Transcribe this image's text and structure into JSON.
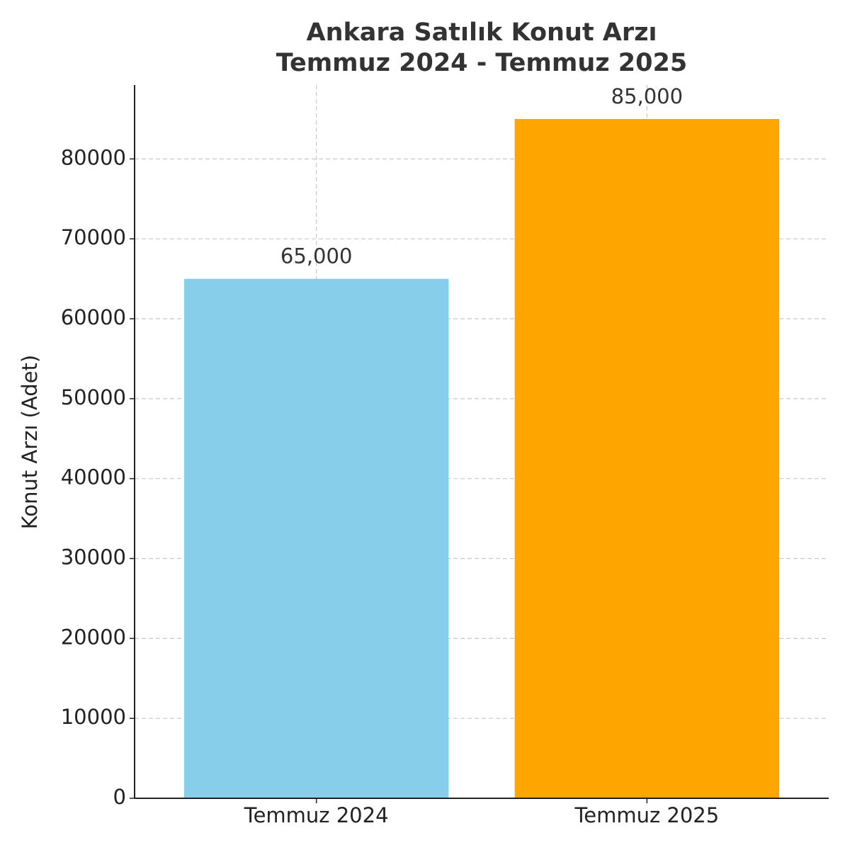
{
  "chart_data": {
    "type": "bar",
    "title": [
      "Ankara Satılık Konut Arzı",
      "Temmuz 2024 - Temmuz 2025"
    ],
    "ylabel": "Konut Arzı (Adet)",
    "categories": [
      "Temmuz 2024",
      "Temmuz 2025"
    ],
    "values": [
      65000,
      85000
    ],
    "value_labels": [
      "65,000",
      "85,000"
    ],
    "colors": [
      "#87ceeb",
      "#ffa500"
    ],
    "ylim": [
      0,
      89250
    ],
    "yticks": [
      0,
      10000,
      20000,
      30000,
      40000,
      50000,
      60000,
      70000,
      80000
    ],
    "grid": true
  }
}
